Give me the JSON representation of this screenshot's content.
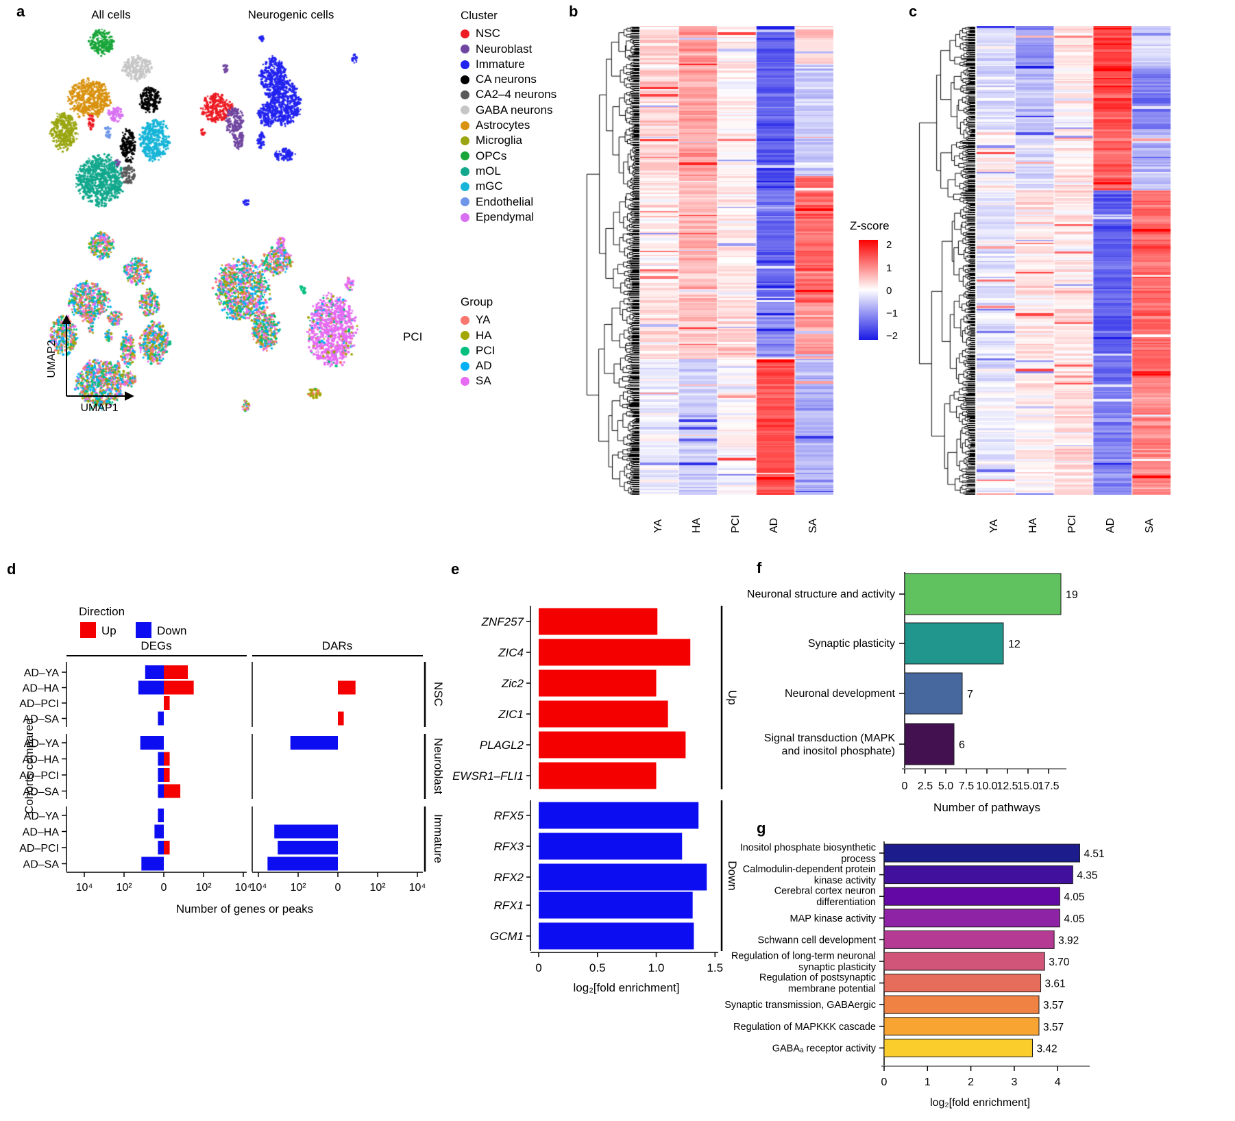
{
  "panel_labels": {
    "a": "a",
    "b": "b",
    "c": "c",
    "d": "d",
    "e": "e",
    "f": "f",
    "g": "g"
  },
  "zscore_legend": {
    "title": "Z-score",
    "ticks": [
      "2",
      "1",
      "0",
      "−1",
      "−2"
    ]
  },
  "chart_data": [
    {
      "id": "a",
      "type": "scatter",
      "titles": [
        "All cells",
        "Neurogenic cells"
      ],
      "x_label": "UMAP1",
      "y_label": "UMAP2",
      "annotation": "PCI",
      "cluster_legend": {
        "title": "Cluster",
        "items": [
          {
            "label": "NSC",
            "color": "#ed1c24"
          },
          {
            "label": "Neuroblast",
            "color": "#7046a0"
          },
          {
            "label": "Immature",
            "color": "#2323f0"
          },
          {
            "label": "CA neurons",
            "color": "#000000"
          },
          {
            "label": "CA2–4 neurons",
            "color": "#595959"
          },
          {
            "label": "GABA neurons",
            "color": "#c6c6c6"
          },
          {
            "label": "Astrocytes",
            "color": "#d9920f"
          },
          {
            "label": "Microglia",
            "color": "#9aa611"
          },
          {
            "label": "OPCs",
            "color": "#19a63a"
          },
          {
            "label": "mOL",
            "color": "#12a88d"
          },
          {
            "label": "mGC",
            "color": "#18b5d8"
          },
          {
            "label": "Endothelial",
            "color": "#6e96e8"
          },
          {
            "label": "Ependymal",
            "color": "#d970f2"
          }
        ]
      },
      "group_legend": {
        "title": "Group",
        "items": [
          {
            "label": "YA",
            "color": "#F8766D"
          },
          {
            "label": "HA",
            "color": "#A3A500"
          },
          {
            "label": "PCI",
            "color": "#00BF7D"
          },
          {
            "label": "AD",
            "color": "#00B0F6"
          },
          {
            "label": "SA",
            "color": "#E76BF3"
          }
        ]
      },
      "all_cells_blobs": [
        {
          "c": "OPCs",
          "cx": 0.43,
          "cy": 0.08,
          "rx": 0.085,
          "ry": 0.06
        },
        {
          "c": "GABA neurons",
          "cx": 0.69,
          "cy": 0.21,
          "rx": 0.095,
          "ry": 0.058
        },
        {
          "c": "Astrocytes",
          "cx": 0.34,
          "cy": 0.36,
          "rx": 0.14,
          "ry": 0.088
        },
        {
          "c": "CA neurons",
          "cx": 0.78,
          "cy": 0.37,
          "rx": 0.068,
          "ry": 0.062
        },
        {
          "c": "Ependymal",
          "cx": 0.53,
          "cy": 0.44,
          "rx": 0.05,
          "ry": 0.036
        },
        {
          "c": "NSC",
          "cx": 0.355,
          "cy": 0.48,
          "rx": 0.02,
          "ry": 0.038
        },
        {
          "c": "Microglia",
          "cx": 0.155,
          "cy": 0.53,
          "rx": 0.09,
          "ry": 0.092
        },
        {
          "c": "Endothelial",
          "cx": 0.48,
          "cy": 0.53,
          "rx": 0.026,
          "ry": 0.028
        },
        {
          "c": "mGC",
          "cx": 0.82,
          "cy": 0.57,
          "rx": 0.1,
          "ry": 0.098
        },
        {
          "c": "CA neurons",
          "cx": 0.625,
          "cy": 0.6,
          "rx": 0.05,
          "ry": 0.082
        },
        {
          "c": "Neuroblast",
          "cx": 0.545,
          "cy": 0.68,
          "rx": 0.02,
          "ry": 0.022
        },
        {
          "c": "mOL",
          "cx": 0.42,
          "cy": 0.77,
          "rx": 0.16,
          "ry": 0.115
        },
        {
          "c": "CA2–4 neurons",
          "cx": 0.625,
          "cy": 0.745,
          "rx": 0.05,
          "ry": 0.042
        }
      ],
      "neurogenic_blobs": [
        {
          "c": "Immature",
          "cx": 0.35,
          "cy": 0.06,
          "rx": 0.013,
          "ry": 0.022
        },
        {
          "c": "Immature",
          "cx": 0.828,
          "cy": 0.16,
          "rx": 0.013,
          "ry": 0.028
        },
        {
          "c": "Neuroblast",
          "cx": 0.165,
          "cy": 0.21,
          "rx": 0.012,
          "ry": 0.02
        },
        {
          "c": "Immature",
          "cx": 0.41,
          "cy": 0.26,
          "rx": 0.062,
          "ry": 0.095
        },
        {
          "c": "Immature",
          "cx": 0.475,
          "cy": 0.38,
          "rx": 0.072,
          "ry": 0.105
        },
        {
          "c": "NSC",
          "cx": 0.12,
          "cy": 0.41,
          "rx": 0.075,
          "ry": 0.065
        },
        {
          "c": "Neuroblast",
          "cx": 0.21,
          "cy": 0.47,
          "rx": 0.042,
          "ry": 0.065
        },
        {
          "c": "Immature",
          "cx": 0.38,
          "cy": 0.44,
          "rx": 0.045,
          "ry": 0.06
        },
        {
          "c": "NSC",
          "cx": 0.05,
          "cy": 0.53,
          "rx": 0.012,
          "ry": 0.014
        },
        {
          "c": "Neuroblast",
          "cx": 0.235,
          "cy": 0.57,
          "rx": 0.025,
          "ry": 0.042
        },
        {
          "c": "Immature",
          "cx": 0.345,
          "cy": 0.57,
          "rx": 0.018,
          "ry": 0.045
        },
        {
          "c": "Immature",
          "cx": 0.468,
          "cy": 0.645,
          "rx": 0.05,
          "ry": 0.03
        },
        {
          "c": "Immature",
          "cx": 0.27,
          "cy": 0.88,
          "rx": 0.016,
          "ry": 0.022
        }
      ],
      "neurogenic_group_blobs": [
        {
          "mix": "all",
          "cx": 0.25,
          "cy": 0.3,
          "rx": 0.13,
          "ry": 0.145
        },
        {
          "mix": "all",
          "cx": 0.43,
          "cy": 0.16,
          "rx": 0.07,
          "ry": 0.065
        },
        {
          "mix": "sa",
          "cx": 0.45,
          "cy": 0.08,
          "rx": 0.02,
          "ry": 0.045
        },
        {
          "mix": "all",
          "cx": 0.37,
          "cy": 0.5,
          "rx": 0.065,
          "ry": 0.1
        },
        {
          "mix": "sa",
          "cx": 0.71,
          "cy": 0.5,
          "rx": 0.115,
          "ry": 0.165
        },
        {
          "mix": "sa",
          "cx": 0.8,
          "cy": 0.27,
          "rx": 0.02,
          "ry": 0.03
        },
        {
          "mix": "ha",
          "cx": 0.62,
          "cy": 0.82,
          "rx": 0.03,
          "ry": 0.025
        },
        {
          "mix": "all",
          "cx": 0.27,
          "cy": 0.88,
          "rx": 0.018,
          "ry": 0.025
        },
        {
          "mix": "pci",
          "cx": 0.56,
          "cy": 0.3,
          "rx": 0.015,
          "ry": 0.02
        }
      ]
    },
    {
      "id": "b",
      "type": "heatmap",
      "categories": [
        "YA",
        "HA",
        "PCI",
        "AD",
        "SA"
      ],
      "zlim": [
        -2,
        2
      ],
      "blocks": [
        {
          "frac": 0.08,
          "means": [
            0.35,
            0.75,
            0.1,
            -1.45,
            0.35
          ]
        },
        {
          "frac": 0.24,
          "means": [
            0.3,
            0.7,
            0.1,
            -1.4,
            -0.45
          ]
        },
        {
          "frac": 0.27,
          "means": [
            0.15,
            0.55,
            0.2,
            -1.35,
            1.15
          ]
        },
        {
          "frac": 0.12,
          "means": [
            0.3,
            0.45,
            0.3,
            -1.0,
            0.8
          ]
        },
        {
          "frac": 0.29,
          "means": [
            -0.1,
            -0.45,
            0.05,
            1.35,
            -0.7
          ]
        }
      ]
    },
    {
      "id": "c",
      "type": "heatmap",
      "categories": [
        "YA",
        "HA",
        "PCI",
        "AD",
        "SA"
      ],
      "zlim": [
        -2,
        2
      ],
      "blocks": [
        {
          "frac": 0.09,
          "means": [
            -0.3,
            -0.9,
            0.15,
            1.5,
            -0.3
          ]
        },
        {
          "frac": 0.13,
          "means": [
            -0.3,
            -0.5,
            0.1,
            1.4,
            -1.1
          ]
        },
        {
          "frac": 0.13,
          "means": [
            0.1,
            -0.3,
            0.15,
            1.2,
            -0.5
          ]
        },
        {
          "frac": 0.4,
          "means": [
            -0.2,
            0.2,
            0.2,
            -1.4,
            1.15
          ]
        },
        {
          "frac": 0.25,
          "means": [
            -0.15,
            0.1,
            0.25,
            -1.1,
            0.9
          ]
        }
      ]
    },
    {
      "id": "d",
      "type": "bar",
      "legend": {
        "title": "Direction",
        "items": [
          {
            "label": "Up",
            "color": "#f40000"
          },
          {
            "label": "Down",
            "color": "#0d0df2"
          }
        ]
      },
      "facet_titles": [
        "DEGs",
        "DARs"
      ],
      "strips": [
        "NSC",
        "Neuroblast",
        "Immature"
      ],
      "ylabel": "Cohorts compared",
      "xlabel": "Number of genes or peaks",
      "tick_labels": [
        "10⁴",
        "10²",
        "0",
        "10²",
        "10⁴"
      ],
      "rows": [
        {
          "strip": "NSC",
          "label": "AD–YA",
          "deg_down": 9,
          "deg_up": 17,
          "dar_down": 0,
          "dar_up": 0
        },
        {
          "strip": "NSC",
          "label": "AD–HA",
          "deg_down": 20,
          "deg_up": 34,
          "dar_down": 0,
          "dar_up": 8
        },
        {
          "strip": "NSC",
          "label": "AD–PCI",
          "deg_down": 0,
          "deg_up": 2,
          "dar_down": 0,
          "dar_up": 0
        },
        {
          "strip": "NSC",
          "label": "AD–SA",
          "deg_down": 2,
          "deg_up": 0,
          "dar_down": 0,
          "dar_up": 2
        },
        {
          "strip": "Neuroblast",
          "label": "AD–YA",
          "deg_down": 16,
          "deg_up": 0,
          "dar_down": 270,
          "dar_up": 0
        },
        {
          "strip": "Neuroblast",
          "label": "AD–HA",
          "deg_down": 2,
          "deg_up": 2,
          "dar_down": 0,
          "dar_up": 0
        },
        {
          "strip": "Neuroblast",
          "label": "AD–PCI",
          "deg_down": 2,
          "deg_up": 2,
          "dar_down": 0,
          "dar_up": 0
        },
        {
          "strip": "Neuroblast",
          "label": "AD–SA",
          "deg_down": 2,
          "deg_up": 7,
          "dar_down": 0,
          "dar_up": 0
        },
        {
          "strip": "Immature",
          "label": "AD–YA",
          "deg_down": 2,
          "deg_up": 0,
          "dar_down": 0,
          "dar_up": 0
        },
        {
          "strip": "Immature",
          "label": "AD–HA",
          "deg_down": 3,
          "deg_up": 0,
          "dar_down": 1800,
          "dar_up": 0
        },
        {
          "strip": "Immature",
          "label": "AD–PCI",
          "deg_down": 2,
          "deg_up": 2,
          "dar_down": 1200,
          "dar_up": 0
        },
        {
          "strip": "Immature",
          "label": "AD–SA",
          "deg_down": 14,
          "deg_up": 0,
          "dar_down": 4000,
          "dar_up": 0
        }
      ]
    },
    {
      "id": "e",
      "type": "bar",
      "xlabel": "log₂[fold enrichment]",
      "x_ticks": [
        "0",
        "0.5",
        "1.0",
        "1.5"
      ],
      "xlim": [
        0,
        1.5
      ],
      "facets": [
        {
          "strip": "Up",
          "color": "#f40000",
          "bars": [
            {
              "gene": "ZNF257",
              "value": 1.01
            },
            {
              "gene": "ZIC4",
              "value": 1.29
            },
            {
              "gene": "Zic2",
              "value": 1.0
            },
            {
              "gene": "ZIC1",
              "value": 1.1
            },
            {
              "gene": "PLAGL2",
              "value": 1.25
            },
            {
              "gene": "EWSR1–FLI1",
              "value": 1.0
            }
          ]
        },
        {
          "strip": "Down",
          "color": "#0d0df2",
          "bars": [
            {
              "gene": "RFX5",
              "value": 1.36
            },
            {
              "gene": "RFX3",
              "value": 1.22
            },
            {
              "gene": "RFX2",
              "value": 1.43
            },
            {
              "gene": "RFX1",
              "value": 1.31
            },
            {
              "gene": "GCM1",
              "value": 1.32
            }
          ]
        }
      ]
    },
    {
      "id": "f",
      "type": "bar",
      "xlabel": "Number of pathways",
      "x_ticks": [
        "0",
        "2.5",
        "5.0",
        "7.5",
        "10.0",
        "12.5",
        "15.0",
        "17.5"
      ],
      "xlim": [
        0,
        19.5
      ],
      "bars": [
        {
          "label_lines": [
            "Neuronal structure and activity"
          ],
          "value": 19,
          "display": "19",
          "color": "#5fc25f"
        },
        {
          "label_lines": [
            "Synaptic plasticity"
          ],
          "value": 12,
          "display": "12",
          "color": "#20968c"
        },
        {
          "label_lines": [
            "Neuronal development"
          ],
          "value": 7,
          "display": "7",
          "color": "#46689e"
        },
        {
          "label_lines": [
            "Signal transduction (MAPK",
            "and inositol phosphate)"
          ],
          "value": 6,
          "display": "6",
          "color": "#431050"
        }
      ]
    },
    {
      "id": "g",
      "type": "bar",
      "xlabel": "log₂[fold enrichment]",
      "x_ticks": [
        "0",
        "1",
        "2",
        "3",
        "4"
      ],
      "xlim": [
        0,
        4.75
      ],
      "bars": [
        {
          "label_lines": [
            "Inositol phosphate biosynthetic",
            "process"
          ],
          "value": 4.51,
          "display": "4.51",
          "color": "#1c1c8c"
        },
        {
          "label_lines": [
            "Calmodulin-dependent protein",
            "kinase activity"
          ],
          "value": 4.35,
          "display": "4.35",
          "color": "#41119e"
        },
        {
          "label_lines": [
            "Cerebral cortex neuron",
            "differentiation"
          ],
          "value": 4.05,
          "display": "4.05",
          "color": "#6308a5"
        },
        {
          "label_lines": [
            "MAP kinase activity"
          ],
          "value": 4.05,
          "display": "4.05",
          "color": "#8f23a6"
        },
        {
          "label_lines": [
            "Schwann cell development"
          ],
          "value": 3.92,
          "display": "3.92",
          "color": "#b53a94"
        },
        {
          "label_lines": [
            "Regulation of long-term neuronal",
            "synaptic plasticity"
          ],
          "value": 3.7,
          "display": "3.70",
          "color": "#d05578"
        },
        {
          "label_lines": [
            "Regulation of postsynaptic",
            "membrane potential"
          ],
          "value": 3.61,
          "display": "3.61",
          "color": "#e66c5b"
        },
        {
          "label_lines": [
            "Synaptic transmission, GABAergic"
          ],
          "value": 3.57,
          "display": "3.57",
          "color": "#f08344"
        },
        {
          "label_lines": [
            "Regulation of MAPKKK cascade"
          ],
          "value": 3.57,
          "display": "3.57",
          "color": "#f8a432"
        },
        {
          "label_lines": [
            "GABAₐ receptor activity"
          ],
          "value": 3.42,
          "display": "3.42",
          "color": "#facd2d"
        }
      ]
    }
  ]
}
